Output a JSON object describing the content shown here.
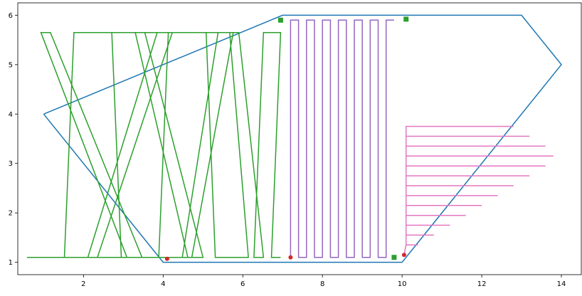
{
  "chart_data": {
    "type": "line",
    "title": "",
    "xlabel": "",
    "ylabel": "",
    "xlim": [
      0.35,
      14.5
    ],
    "ylim": [
      0.75,
      6.25
    ],
    "x_ticks": [
      2,
      4,
      6,
      8,
      10,
      12,
      14
    ],
    "y_ticks": [
      1,
      2,
      3,
      4,
      5,
      6
    ],
    "x_tick_labels": [
      "2",
      "4",
      "6",
      "8",
      "10",
      "12",
      "14"
    ],
    "y_tick_labels": [
      "1",
      "2",
      "3",
      "4",
      "5",
      "6"
    ],
    "grid": false,
    "legend": "none",
    "series": [
      {
        "kind": "boundary",
        "color": "#1f77b4",
        "x": [
          1,
          4,
          10,
          14,
          13,
          7,
          1
        ],
        "y": [
          4,
          1,
          1,
          5,
          6,
          6,
          4
        ]
      },
      {
        "kind": "zigzag-diagonal",
        "color": "#2ca02c",
        "x": [
          6.95,
          6.72,
          6.95,
          6.52,
          6.28,
          6.52,
          5.9,
          5.67,
          6.14,
          5.31,
          5.08,
          5.76,
          4.72,
          4.48,
          5.38,
          4.13,
          3.89,
          5.0,
          3.54,
          3.3,
          4.62,
          2.95,
          2.71,
          4.23,
          2.35,
          2.11,
          3.85,
          1.76,
          1.52,
          3.47,
          1.17,
          0.93,
          3.09,
          0.58
        ],
        "y": [
          1.1,
          1.1,
          5.65,
          5.65,
          1.1,
          1.1,
          5.65,
          5.65,
          1.1,
          1.1,
          5.65,
          5.65,
          1.1,
          1.1,
          5.65,
          5.65,
          1.1,
          1.1,
          5.65,
          5.65,
          1.1,
          1.1,
          5.65,
          5.65,
          1.1,
          1.1,
          5.65,
          5.65,
          1.1,
          1.1,
          5.65,
          5.65,
          1.1,
          1.1
        ]
      },
      {
        "kind": "boustrophedon-vertical",
        "color": "#9467bd",
        "x": [
          7.2,
          7.2,
          7.4,
          7.4,
          7.6,
          7.6,
          7.8,
          7.8,
          8.0,
          8.0,
          8.2,
          8.2,
          8.4,
          8.4,
          8.6,
          8.6,
          8.8,
          8.8,
          9.0,
          9.0,
          9.2,
          9.2,
          9.4,
          9.4,
          9.6,
          9.6,
          9.8
        ],
        "y": [
          1.1,
          5.9,
          5.9,
          1.1,
          1.1,
          5.9,
          5.9,
          1.1,
          1.1,
          5.9,
          5.9,
          1.1,
          1.1,
          5.9,
          5.9,
          1.1,
          1.1,
          5.9,
          5.9,
          1.1,
          1.1,
          5.9,
          5.9,
          1.1,
          1.1,
          5.9,
          5.9
        ]
      },
      {
        "kind": "boustrophedon-horizontal",
        "color": "#e377c2",
        "x": [
          10.05,
          10.1,
          10.4,
          10.1,
          10.1,
          10.8,
          10.1,
          10.1,
          11.2,
          10.1,
          10.1,
          11.6,
          10.1,
          10.1,
          12.0,
          10.1,
          10.1,
          12.4,
          10.1,
          10.1,
          12.8,
          10.1,
          10.1,
          13.2,
          10.1,
          10.1,
          13.6,
          10.1,
          10.1,
          13.8,
          10.1,
          10.1,
          13.6,
          10.1,
          10.1,
          13.2,
          10.1,
          10.1,
          12.8
        ],
        "y": [
          1.15,
          1.35,
          1.35,
          1.35,
          1.55,
          1.55,
          1.55,
          1.75,
          1.75,
          1.75,
          1.95,
          1.95,
          1.95,
          2.15,
          2.15,
          2.15,
          2.35,
          2.35,
          2.35,
          2.55,
          2.55,
          2.55,
          2.75,
          2.75,
          2.75,
          2.95,
          2.95,
          2.95,
          3.15,
          3.15,
          3.15,
          3.35,
          3.35,
          3.35,
          3.55,
          3.55,
          3.55,
          3.75,
          3.75
        ]
      }
    ],
    "start_points": [
      {
        "color": "#d62728",
        "marker": "circle",
        "x": 4.1,
        "y": 1.07
      },
      {
        "color": "#d62728",
        "marker": "circle",
        "x": 7.2,
        "y": 1.1
      },
      {
        "color": "#d62728",
        "marker": "circle",
        "x": 10.05,
        "y": 1.15
      }
    ],
    "end_points": [
      {
        "color": "#2ca02c",
        "marker": "square",
        "x": 6.95,
        "y": 5.9
      },
      {
        "color": "#2ca02c",
        "marker": "square",
        "x": 9.8,
        "y": 1.1
      },
      {
        "color": "#2ca02c",
        "marker": "square",
        "x": 10.1,
        "y": 5.92
      }
    ]
  }
}
